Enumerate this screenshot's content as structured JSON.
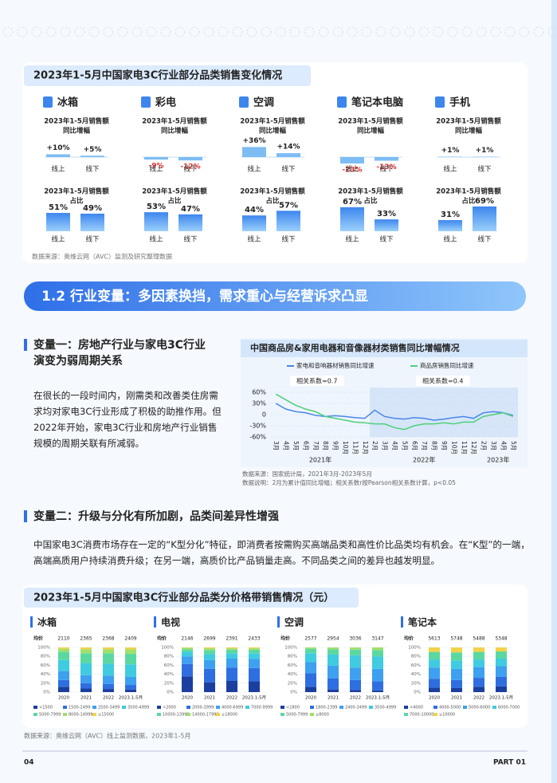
{
  "panel1": {
    "title": "2023年1-5月中国家电3C行业部分品类销售变化情况",
    "growth_label": [
      "2023年1-5月销售额",
      "同比增幅"
    ],
    "share_label": [
      "2023年1-5月销售额",
      "占比"
    ],
    "channels": [
      "线上",
      "线下"
    ],
    "items": [
      {
        "name": "冰箱",
        "growth": {
          "values": [
            10,
            5
          ],
          "value_labels": [
            "+10%",
            "+5%"
          ]
        },
        "share": {
          "values": [
            51,
            49
          ],
          "value_labels": [
            "51%",
            "49%"
          ]
        }
      },
      {
        "name": "彩电",
        "growth": {
          "values": [
            -9,
            -12
          ],
          "value_labels": [
            "-9%",
            "-12%"
          ]
        },
        "share": {
          "values": [
            53,
            47
          ],
          "value_labels": [
            "53%",
            "47%"
          ]
        }
      },
      {
        "name": "空调",
        "growth": {
          "values": [
            36,
            14
          ],
          "value_labels": [
            "+36%",
            "+14%"
          ]
        },
        "share": {
          "values": [
            44,
            57
          ],
          "value_labels": [
            "44%",
            "57%"
          ]
        }
      },
      {
        "name": "笔记本电脑",
        "growth": {
          "values": [
            -23,
            -13
          ],
          "value_labels": [
            "-23%",
            "-13%"
          ]
        },
        "share": {
          "values": [
            67,
            33
          ],
          "value_labels": [
            "67%",
            "33%"
          ]
        }
      },
      {
        "name": "手机",
        "growth": {
          "values": [
            1,
            1
          ],
          "value_labels": [
            "+1%",
            "+1%"
          ]
        },
        "share": {
          "values": [
            31,
            69
          ],
          "value_labels": [
            "31%",
            "69%"
          ]
        }
      }
    ],
    "source": "数据来源：奥维云网（AVC）监测及研究整理数据"
  },
  "section": {
    "title": "1.2 行业变量：多因素换挡，需求重心与经营诉求凸显"
  },
  "var1": {
    "title": [
      "变量一：房地产行业与家电3C行业",
      "演变为弱周期关系"
    ],
    "paragraph": "在很长的一段时间内，刚需类和改善类住房需求均对家电3C行业形成了积极的助推作用。但2022年开始，家电3C行业和房地产行业销售规模的周期关联有所减弱。"
  },
  "line_chart": {
    "type": "line",
    "title": "中国商品房&家用电器和音像器材类销售同比增幅情况",
    "annotations": [
      "相关系数=0.7",
      "相关系数=0.4"
    ],
    "categories": [
      "3月",
      "4月",
      "5月",
      "6月",
      "7月",
      "8月",
      "9月",
      "10月",
      "11月",
      "12月",
      "2月",
      "3月",
      "4月",
      "5月",
      "6月",
      "7月",
      "8月",
      "9月",
      "10月",
      "11月",
      "12月",
      "2月",
      "3月",
      "4月",
      "5月"
    ],
    "year_labels": [
      "2021年",
      "2022年",
      "2023年"
    ],
    "series": [
      {
        "name": "家电和音响器材销售同比增速",
        "color": "#4a86e8",
        "values": [
          30,
          15,
          8,
          5,
          -2,
          -5,
          -3,
          -5,
          -8,
          -10,
          12,
          -5,
          -10,
          -12,
          -8,
          -10,
          -15,
          -12,
          -8,
          -5,
          -10,
          5,
          8,
          5,
          -2
        ]
      },
      {
        "name": "商品房销售同比增速",
        "color": "#4fd07a",
        "values": [
          55,
          40,
          25,
          15,
          8,
          -5,
          -10,
          -15,
          -20,
          -22,
          -25,
          -25,
          -35,
          -40,
          -30,
          -25,
          -25,
          -22,
          -25,
          -20,
          -20,
          -5,
          0,
          5,
          -5
        ]
      }
    ],
    "ylim": [
      -60,
      60
    ],
    "yticks": [
      {
        "value": 60,
        "label": "60%"
      },
      {
        "value": 30,
        "label": "30%"
      },
      0,
      {
        "value": -30,
        "label": "-30%"
      },
      {
        "value": -60,
        "label": "-60%"
      }
    ],
    "notes": [
      "数据来源：国家统计局，2021年3月-2023年5月",
      "数据说明：2月为累计值同比增幅；相关系数r按Pearson相关系数计算，p<0.05"
    ]
  },
  "var2": {
    "title": "变量二：升级与分化有所加剧，品类间差异性增强",
    "paragraph": "中国家电3C消费市场存在一定的“K型分化”特征，即消费者按需购买高端品类和高性价比品类均有机会。在“K型”的一端，高端高质用户持续消费升级；在另一端，高质价比产品销量走高。不同品类之间的差异也越发明显。"
  },
  "panel3": {
    "title": "2023年1-5月中国家电3C行业部分品类分价格带销售情况（元）",
    "source": "数据来源：奥维云网（AVC）线上监测数据，2023年1-5月",
    "charts": [
      {
        "type": "bar",
        "name": "冰箱",
        "avg_label": "均价",
        "avg_values": [
          2110,
          2365,
          2368,
          2409
        ],
        "categories": [
          "2020",
          "2021",
          "2022",
          "2023.1-5月"
        ],
        "ylim": [
          0,
          100
        ],
        "yticks": [
          {
            "value": 0,
            "label": "0%"
          },
          {
            "value": 20,
            "label": "20%"
          },
          {
            "value": 40,
            "label": "40%"
          },
          {
            "value": 60,
            "label": "60%"
          },
          {
            "value": 80,
            "label": "80%"
          },
          {
            "value": 100,
            "label": "100%"
          }
        ],
        "series": [
          {
            "name": "<1500",
            "color": "#1a3f9e",
            "values": [
              12,
              8,
              7,
              6
            ]
          },
          {
            "name": "1500-2499",
            "color": "#2f6ee0",
            "values": [
              15,
              12,
              11,
              10
            ]
          },
          {
            "name": "2500-3499",
            "color": "#3ea0f0",
            "values": [
              20,
              18,
              19,
              18
            ]
          },
          {
            "name": "3500-4999",
            "color": "#3fcbe0",
            "values": [
              25,
              27,
              27,
              28
            ]
          },
          {
            "name": "5000-7999",
            "color": "#5bd8a0",
            "values": [
              18,
              22,
              23,
              24
            ]
          },
          {
            "name": "8000-14999",
            "color": "#9ee06a",
            "values": [
              7,
              9,
              9,
              10
            ]
          },
          {
            "name": "≥15000",
            "color": "#f2d24a",
            "values": [
              3,
              4,
              4,
              4
            ]
          }
        ]
      },
      {
        "type": "bar",
        "name": "电视",
        "avg_label": "均价",
        "avg_values": [
          2146,
          2699,
          2391,
          2433
        ],
        "categories": [
          "2020",
          "2021",
          "2022",
          "2023.1-5月"
        ],
        "ylim": [
          0,
          100
        ],
        "yticks": [
          {
            "value": 0,
            "label": "0%"
          },
          {
            "value": 20,
            "label": "20%"
          },
          {
            "value": 40,
            "label": "40%"
          },
          {
            "value": 60,
            "label": "60%"
          },
          {
            "value": 80,
            "label": "80%"
          },
          {
            "value": 100,
            "label": "100%"
          }
        ],
        "series": [
          {
            "name": "<2000",
            "color": "#1a3f9e",
            "values": [
              35,
              22,
              25,
              24
            ]
          },
          {
            "name": "2000-3999",
            "color": "#2f6ee0",
            "values": [
              28,
              30,
              30,
              30
            ]
          },
          {
            "name": "4000-6999",
            "color": "#3ea0f0",
            "values": [
              17,
              20,
              20,
              20
            ]
          },
          {
            "name": "7000-9999",
            "color": "#3fcbe0",
            "values": [
              10,
              13,
              12,
              13
            ]
          },
          {
            "name": "10000-13999",
            "color": "#5bd8a0",
            "values": [
              6,
              9,
              8,
              8
            ]
          },
          {
            "name": "14000-17999",
            "color": "#9ee06a",
            "values": [
              3,
              4,
              3,
              3
            ]
          },
          {
            "name": "≥18000",
            "color": "#f2d24a",
            "values": [
              1,
              2,
              2,
              2
            ]
          }
        ]
      },
      {
        "type": "bar",
        "name": "空调",
        "avg_label": "均价",
        "avg_values": [
          2577,
          2954,
          3036,
          3147
        ],
        "categories": [
          "2020",
          "2021",
          "2022",
          "2023.1-5月"
        ],
        "ylim": [
          0,
          100
        ],
        "yticks": [
          {
            "value": 0,
            "label": "0%"
          },
          {
            "value": 20,
            "label": "20%"
          },
          {
            "value": 40,
            "label": "40%"
          },
          {
            "value": 60,
            "label": "60%"
          },
          {
            "value": 80,
            "label": "80%"
          },
          {
            "value": 100,
            "label": "100%"
          }
        ],
        "series": [
          {
            "name": "<1800",
            "color": "#1a3f9e",
            "values": [
              12,
              6,
              5,
              4
            ]
          },
          {
            "name": "1800-2399",
            "color": "#2f6ee0",
            "values": [
              30,
              25,
              22,
              20
            ]
          },
          {
            "name": "2400-3499",
            "color": "#3ea0f0",
            "values": [
              25,
              28,
              28,
              28
            ]
          },
          {
            "name": "3500-4999",
            "color": "#3fcbe0",
            "values": [
              20,
              25,
              27,
              28
            ]
          },
          {
            "name": "5000-7999",
            "color": "#5bd8a0",
            "values": [
              10,
              12,
              13,
              14
            ]
          },
          {
            "name": "≥8000",
            "color": "#9ee06a",
            "values": [
              3,
              4,
              5,
              6
            ]
          }
        ]
      },
      {
        "type": "bar",
        "name": "笔记本",
        "avg_label": "均价",
        "avg_values": [
          5613,
          5748,
          5488,
          5348
        ],
        "categories": [
          "2020",
          "2021",
          "2022",
          "2023.1-5月"
        ],
        "ylim": [
          0,
          100
        ],
        "yticks": [
          {
            "value": 0,
            "label": "0%"
          },
          {
            "value": 20,
            "label": "20%"
          },
          {
            "value": 40,
            "label": "40%"
          },
          {
            "value": 60,
            "label": "60%"
          },
          {
            "value": 80,
            "label": "80%"
          },
          {
            "value": 100,
            "label": "100%"
          }
        ],
        "series": [
          {
            "name": "<4000",
            "color": "#1a3f9e",
            "values": [
              10,
              9,
              12,
              13
            ]
          },
          {
            "name": "4000-5000",
            "color": "#2f6ee0",
            "values": [
              20,
              18,
              20,
              21
            ]
          },
          {
            "name": "5000-6000",
            "color": "#3ea0f0",
            "values": [
              25,
              25,
              24,
              24
            ]
          },
          {
            "name": "6000-7000",
            "color": "#3fcbe0",
            "values": [
              18,
              19,
              17,
              17
            ]
          },
          {
            "name": "7000-10000",
            "color": "#5bd8a0",
            "values": [
              17,
              18,
              17,
              16
            ]
          },
          {
            "name": "≥10000",
            "color": "#f2d24a",
            "values": [
              10,
              11,
              10,
              9
            ]
          }
        ]
      }
    ]
  },
  "footer": {
    "page": "04",
    "part": "PART 01"
  }
}
